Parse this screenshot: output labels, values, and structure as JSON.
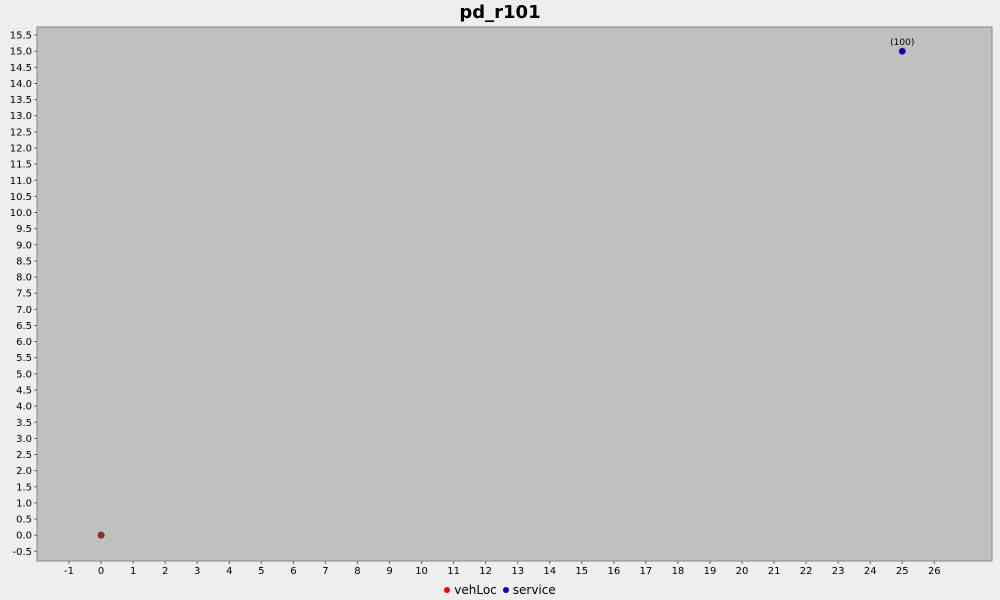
{
  "chart_data": {
    "type": "scatter",
    "title": "pd_r101",
    "xlabel": "",
    "ylabel": "",
    "xlim": [
      -2,
      27.8
    ],
    "ylim": [
      -0.8,
      15.75
    ],
    "x_ticks": [
      -1,
      0,
      1,
      2,
      3,
      4,
      5,
      6,
      7,
      8,
      9,
      10,
      11,
      12,
      13,
      14,
      15,
      16,
      17,
      18,
      19,
      20,
      21,
      22,
      23,
      24,
      25,
      26
    ],
    "y_ticks": [
      "-0.5",
      "0.0",
      "0.5",
      "1.0",
      "1.5",
      "2.0",
      "2.5",
      "3.0",
      "3.5",
      "4.0",
      "4.5",
      "5.0",
      "5.5",
      "6.0",
      "6.5",
      "7.0",
      "7.5",
      "8.0",
      "8.5",
      "9.0",
      "9.5",
      "10.0",
      "10.5",
      "11.0",
      "11.5",
      "12.0",
      "12.5",
      "13.0",
      "13.5",
      "14.0",
      "14.5",
      "15.0",
      "15.5"
    ],
    "grid": false,
    "legend_position": "bottom",
    "series": [
      {
        "name": "vehLoc",
        "color": "#ff0000",
        "marker_color": "#b22222",
        "points": [
          {
            "x": 0,
            "y": 0,
            "label": ""
          }
        ]
      },
      {
        "name": "service",
        "color": "#0000cc",
        "marker_color": "#0000cc",
        "points": [
          {
            "x": 25,
            "y": 15,
            "label": "(100)"
          }
        ]
      }
    ]
  },
  "colors": {
    "plot_background": "#c0c0c0",
    "page_background": "#eeeeee"
  }
}
